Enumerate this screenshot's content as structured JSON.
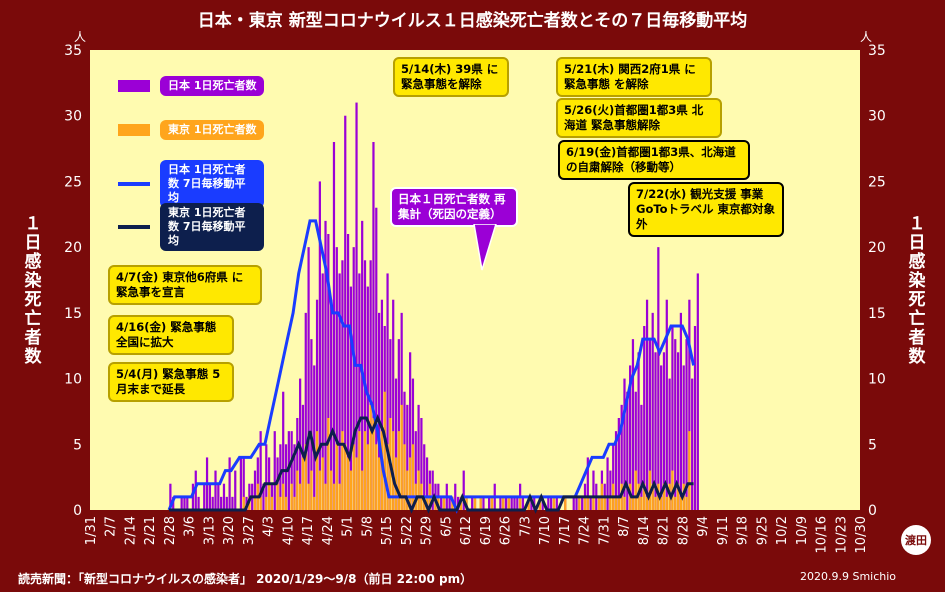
{
  "title": "日本・東京 新型コロナウイルス１日感染死亡者数とその７日毎移動平均",
  "ylabel": "１日感染死亡者数",
  "unit": "人",
  "source": "読売新聞：「新型コロナウイルスの感染者」 2020/1/29～9/8（前日 22:00 pm）",
  "credit": "2020.9.9 Smichio",
  "stamp": "渡田",
  "legend": {
    "japan_daily": "日本 1日死亡者数",
    "tokyo_daily": "東京 1日死亡者数",
    "japan_avg": "日本 1日死亡者数 7日毎移動平均",
    "tokyo_avg": "東京 1日死亡者数 7日毎移動平均"
  },
  "notes": {
    "n1": "4/7(金) 東京他6府県 に緊急事を宣言",
    "n2": "4/16(金) 緊急事態 全国に拡大",
    "n3": "5/4(月) 緊急事態 5月末まで延長",
    "n4": "5/14(木) 39県 に緊急事態を解除",
    "n5": "5/21(木) 関西2府1県 に緊急事態 を解除",
    "n6": "5/26(火)首都圏1都3県 北海道 緊急事態解除",
    "n7": "6/19(金)首都圏1都3県、北海道の自粛解除（移動等）",
    "n8": "日本１日死亡者数 再集計（死因の定義）",
    "n9": "7/22(水) 観光支援 事業GoToトラベル 東京都対象外"
  },
  "colors": {
    "background": "#7a0a0a",
    "plot": "#fffbb0",
    "japan": "#9b00d6",
    "tokyo": "#ffa51c",
    "japan_avg": "#1a3cff",
    "tokyo_avg": "#0d1f4d"
  },
  "chart_data": {
    "type": "bar",
    "ylim": [
      0,
      35
    ],
    "yticks": [
      0,
      5,
      10,
      15,
      20,
      25,
      30,
      35
    ],
    "xtick_labels": [
      "1/31",
      "2/7",
      "2/14",
      "2/21",
      "2/28",
      "3/6",
      "3/13",
      "3/20",
      "3/27",
      "4/3",
      "4/10",
      "4/17",
      "4/24",
      "5/1",
      "5/8",
      "5/15",
      "5/22",
      "5/29",
      "6/5",
      "6/12",
      "6/19",
      "6/26",
      "7/3",
      "7/10",
      "7/17",
      "7/24",
      "7/31",
      "8/7",
      "8/14",
      "8/21",
      "8/28",
      "9/4",
      "9/11",
      "9/18",
      "9/25",
      "10/2",
      "10/9",
      "10/16",
      "10/23",
      "10/30"
    ],
    "start_date": "2020-01-31",
    "total_days": 273,
    "grid": false,
    "series": [
      {
        "name": "日本 1日死亡者数",
        "start": 28,
        "values": [
          2,
          1,
          0,
          0,
          1,
          1,
          1,
          0,
          2,
          3,
          1,
          0,
          2,
          4,
          2,
          1,
          3,
          2,
          1,
          2,
          1,
          4,
          1,
          3,
          0,
          4,
          4,
          1,
          2,
          2,
          3,
          4,
          6,
          2,
          5,
          4,
          2,
          6,
          4,
          5,
          9,
          5,
          6,
          6,
          5,
          7,
          10,
          8,
          15,
          20,
          13,
          11,
          16,
          25,
          18,
          22,
          21,
          16,
          28,
          20,
          18,
          19,
          30,
          21,
          17,
          20,
          31,
          18,
          22,
          19,
          17,
          19,
          28,
          23,
          15,
          16,
          14,
          18,
          13,
          16,
          10,
          13,
          15,
          9,
          8,
          12,
          10,
          6,
          8,
          7,
          5,
          4,
          3,
          3,
          2,
          2,
          1,
          1,
          2,
          1,
          1,
          2,
          1,
          1,
          3,
          1,
          0,
          1,
          1,
          0,
          1,
          1,
          0,
          1,
          1,
          2,
          0,
          1,
          1,
          1,
          1,
          1,
          1,
          1,
          2,
          1,
          0,
          1,
          1,
          1,
          0,
          1,
          1,
          0,
          1,
          1,
          0,
          1,
          0,
          0,
          1,
          0,
          0,
          1,
          1,
          1,
          1,
          2,
          4,
          1,
          3,
          2,
          1,
          3,
          2,
          4,
          3,
          5,
          6,
          7,
          8,
          10,
          9,
          11,
          13,
          9,
          12,
          8,
          14,
          16,
          13,
          15,
          12,
          20,
          11,
          12,
          16,
          10,
          14,
          13,
          12,
          15,
          11,
          13,
          16,
          10,
          14,
          18
        ]
      },
      {
        "name": "東京 1日死亡者数",
        "start": 28,
        "values": [
          0,
          0,
          0,
          0,
          0,
          0,
          0,
          0,
          0,
          0,
          0,
          0,
          0,
          0,
          0,
          0,
          0,
          0,
          0,
          0,
          0,
          0,
          0,
          0,
          0,
          0,
          1,
          0,
          1,
          0,
          1,
          2,
          1,
          0,
          1,
          2,
          1,
          0,
          2,
          1,
          2,
          1,
          0,
          2,
          1,
          3,
          2,
          4,
          5,
          2,
          3,
          1,
          6,
          3,
          4,
          2,
          7,
          3,
          2,
          5,
          2,
          6,
          5,
          4,
          3,
          5,
          4,
          6,
          3,
          6,
          5,
          8,
          7,
          5,
          4,
          6,
          9,
          5,
          7,
          6,
          4,
          6,
          8,
          5,
          3,
          4,
          5,
          2,
          3,
          2,
          1,
          1,
          2,
          0,
          1,
          1,
          0,
          1,
          0,
          0,
          1,
          0,
          0,
          1,
          0,
          1,
          0,
          0,
          1,
          0,
          1,
          0,
          0,
          0,
          1,
          0,
          0,
          0,
          1,
          0,
          1,
          0,
          0,
          0,
          1,
          0,
          0,
          1,
          0,
          0,
          0,
          1,
          0,
          0,
          0,
          0,
          1,
          0,
          0,
          0,
          1,
          0,
          0,
          0,
          0,
          1,
          0,
          1,
          1,
          0,
          1,
          0,
          1,
          2,
          1,
          0,
          1,
          2,
          1,
          1,
          2,
          1,
          0,
          2,
          1,
          3,
          2,
          1,
          2,
          1,
          3,
          2,
          1,
          2,
          1,
          2,
          1,
          2,
          3,
          1,
          2,
          1,
          2,
          1,
          6
        ]
      },
      {
        "name": "日本 1日死亡者数 7日毎移動平均",
        "points": [
          [
            28,
            0
          ],
          [
            30,
            1
          ],
          [
            33,
            1
          ],
          [
            36,
            1
          ],
          [
            38,
            2
          ],
          [
            40,
            2
          ],
          [
            43,
            2
          ],
          [
            46,
            2
          ],
          [
            48,
            3
          ],
          [
            50,
            3
          ],
          [
            53,
            4
          ],
          [
            55,
            4
          ],
          [
            57,
            4
          ],
          [
            60,
            5
          ],
          [
            62,
            5
          ],
          [
            64,
            7
          ],
          [
            66,
            9
          ],
          [
            68,
            11
          ],
          [
            70,
            13
          ],
          [
            72,
            15
          ],
          [
            74,
            18
          ],
          [
            76,
            20
          ],
          [
            78,
            22
          ],
          [
            80,
            22
          ],
          [
            82,
            20
          ],
          [
            84,
            18
          ],
          [
            86,
            15
          ],
          [
            88,
            15
          ],
          [
            90,
            14
          ],
          [
            92,
            14
          ],
          [
            94,
            11
          ],
          [
            96,
            11
          ],
          [
            98,
            9
          ],
          [
            100,
            8
          ],
          [
            102,
            6
          ],
          [
            104,
            3
          ],
          [
            106,
            1
          ],
          [
            108,
            1
          ],
          [
            110,
            1
          ],
          [
            112,
            1
          ],
          [
            114,
            1
          ],
          [
            116,
            1
          ],
          [
            118,
            1
          ],
          [
            120,
            1
          ],
          [
            122,
            1
          ],
          [
            124,
            1
          ],
          [
            126,
            1
          ],
          [
            128,
            1
          ],
          [
            130,
            0
          ],
          [
            132,
            1
          ],
          [
            134,
            1
          ],
          [
            136,
            1
          ],
          [
            138,
            1
          ],
          [
            140,
            1
          ],
          [
            142,
            1
          ],
          [
            144,
            1
          ],
          [
            146,
            1
          ],
          [
            148,
            1
          ],
          [
            150,
            1
          ],
          [
            152,
            1
          ],
          [
            154,
            1
          ],
          [
            156,
            1
          ],
          [
            158,
            1
          ],
          [
            160,
            1
          ],
          [
            162,
            1
          ],
          [
            164,
            1
          ],
          [
            166,
            1
          ],
          [
            168,
            1
          ],
          [
            170,
            1
          ],
          [
            172,
            1
          ],
          [
            174,
            2
          ],
          [
            176,
            3
          ],
          [
            178,
            4
          ],
          [
            180,
            4
          ],
          [
            182,
            4
          ],
          [
            184,
            5
          ],
          [
            186,
            5
          ],
          [
            188,
            6
          ],
          [
            190,
            8
          ],
          [
            192,
            10
          ],
          [
            194,
            11
          ],
          [
            196,
            13
          ],
          [
            198,
            13
          ],
          [
            200,
            13
          ],
          [
            202,
            12
          ],
          [
            204,
            13
          ],
          [
            206,
            14
          ],
          [
            208,
            14
          ],
          [
            210,
            14
          ],
          [
            212,
            13
          ],
          [
            214,
            11
          ]
        ]
      },
      {
        "name": "東京 1日死亡者数 7日毎移動平均",
        "points": [
          [
            28,
            0
          ],
          [
            55,
            0
          ],
          [
            57,
            1
          ],
          [
            60,
            1
          ],
          [
            62,
            2
          ],
          [
            64,
            2
          ],
          [
            66,
            2
          ],
          [
            68,
            3
          ],
          [
            70,
            3
          ],
          [
            72,
            4
          ],
          [
            74,
            5
          ],
          [
            76,
            4
          ],
          [
            78,
            6
          ],
          [
            80,
            4
          ],
          [
            82,
            5
          ],
          [
            84,
            5
          ],
          [
            86,
            6
          ],
          [
            88,
            5
          ],
          [
            90,
            5
          ],
          [
            92,
            4
          ],
          [
            94,
            6
          ],
          [
            96,
            7
          ],
          [
            98,
            7
          ],
          [
            100,
            6
          ],
          [
            102,
            7
          ],
          [
            104,
            6
          ],
          [
            106,
            4
          ],
          [
            108,
            2
          ],
          [
            110,
            1
          ],
          [
            112,
            1
          ],
          [
            114,
            0
          ],
          [
            116,
            1
          ],
          [
            118,
            1
          ],
          [
            120,
            0
          ],
          [
            122,
            1
          ],
          [
            124,
            0
          ],
          [
            126,
            0
          ],
          [
            128,
            0
          ],
          [
            130,
            0
          ],
          [
            132,
            1
          ],
          [
            134,
            0
          ],
          [
            136,
            0
          ],
          [
            138,
            0
          ],
          [
            140,
            0
          ],
          [
            142,
            0
          ],
          [
            144,
            0
          ],
          [
            146,
            0
          ],
          [
            148,
            0
          ],
          [
            150,
            0
          ],
          [
            152,
            0
          ],
          [
            154,
            0
          ],
          [
            156,
            1
          ],
          [
            158,
            0
          ],
          [
            160,
            1
          ],
          [
            162,
            0
          ],
          [
            164,
            0
          ],
          [
            166,
            0
          ],
          [
            168,
            1
          ],
          [
            170,
            1
          ],
          [
            172,
            1
          ],
          [
            174,
            1
          ],
          [
            176,
            1
          ],
          [
            178,
            1
          ],
          [
            180,
            1
          ],
          [
            182,
            1
          ],
          [
            184,
            1
          ],
          [
            186,
            1
          ],
          [
            188,
            1
          ],
          [
            190,
            2
          ],
          [
            192,
            1
          ],
          [
            194,
            1
          ],
          [
            196,
            2
          ],
          [
            198,
            1
          ],
          [
            200,
            2
          ],
          [
            202,
            1
          ],
          [
            204,
            2
          ],
          [
            206,
            1
          ],
          [
            208,
            2
          ],
          [
            210,
            1
          ],
          [
            212,
            2
          ],
          [
            214,
            2
          ]
        ]
      }
    ]
  }
}
